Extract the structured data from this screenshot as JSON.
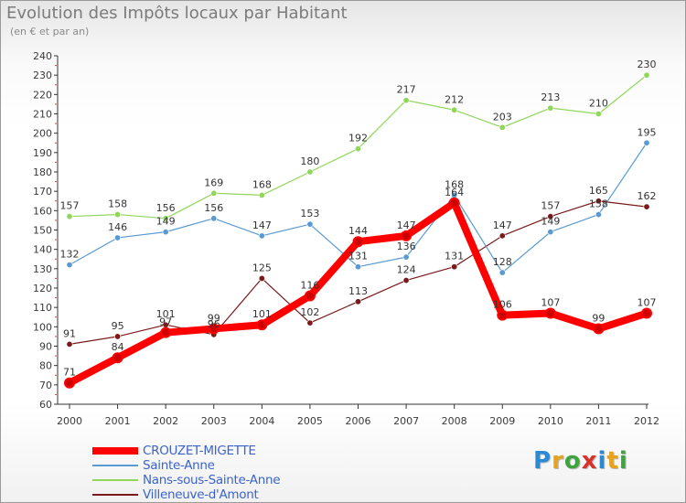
{
  "header": {
    "title": "Evolution des Impôts locaux par Habitant",
    "subtitle": "(en € et par an)"
  },
  "logo": {
    "letters": [
      "P",
      "r",
      "o",
      "x",
      "i",
      "t",
      "i"
    ],
    "colors": [
      "#2b8ad6",
      "#e8a21c",
      "#3fa33f",
      "#d6332b",
      "#2b8ad6",
      "#e8a21c",
      "#3fa33f"
    ]
  },
  "chart_data": {
    "type": "line",
    "title": "Evolution des Impôts locaux par Habitant",
    "subtitle": "(en € et par an)",
    "xlabel": "",
    "ylabel": "",
    "x": [
      "2000",
      "2001",
      "2002",
      "2003",
      "2004",
      "2005",
      "2006",
      "2007",
      "2008",
      "2009",
      "2010",
      "2011",
      "2012"
    ],
    "ylim": [
      60,
      240
    ],
    "yticks": [
      60,
      70,
      80,
      90,
      100,
      110,
      120,
      130,
      140,
      150,
      160,
      170,
      180,
      190,
      200,
      210,
      220,
      230,
      240
    ],
    "grid": false,
    "legend_position": "bottom-left",
    "series": [
      {
        "name": "CROUZET-MIGETTE",
        "color": "#ff0000",
        "values": [
          71,
          84,
          97,
          99,
          101,
          116,
          144,
          147,
          164,
          106,
          107,
          99,
          107
        ]
      },
      {
        "name": "Sainte-Anne",
        "color": "#5a9ad2",
        "values": [
          132,
          146,
          149,
          156,
          147,
          153,
          131,
          136,
          168,
          128,
          149,
          158,
          195
        ]
      },
      {
        "name": "Nans-sous-Sainte-Anne",
        "color": "#8fd65a",
        "values": [
          157,
          158,
          156,
          169,
          168,
          180,
          192,
          217,
          212,
          203,
          213,
          210,
          230
        ]
      },
      {
        "name": "Villeneuve-d'Amont",
        "color": "#7a1a1a",
        "values": [
          91,
          95,
          101,
          96,
          125,
          102,
          113,
          124,
          131,
          147,
          157,
          165,
          162
        ]
      }
    ]
  }
}
